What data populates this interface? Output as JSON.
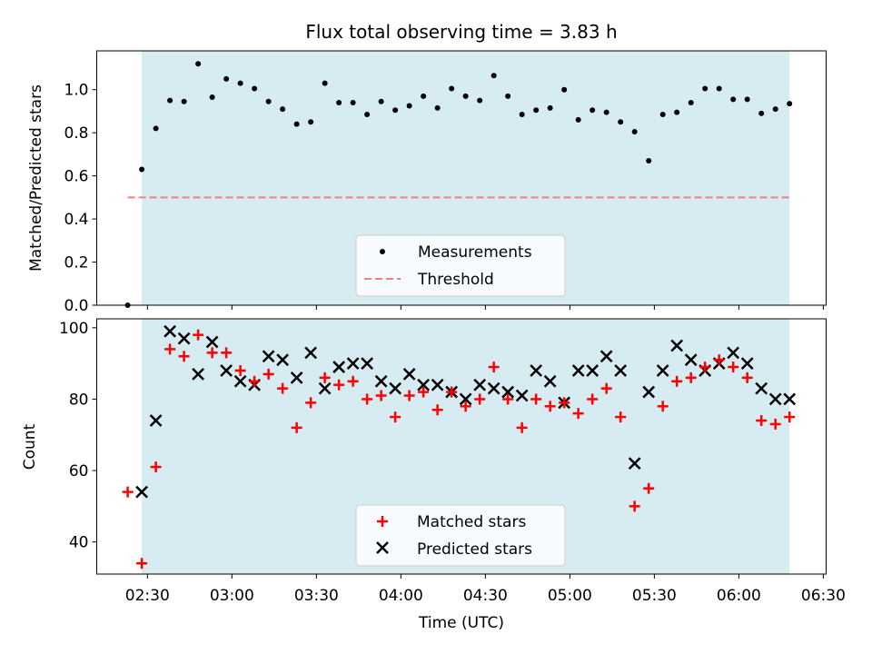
{
  "chart_data": [
    {
      "type": "scatter",
      "title": "Flux total observing time = 3.83 h",
      "xlabel": "",
      "ylabel": "Matched/Predicted stars",
      "xlim": [
        "02:12",
        "06:31"
      ],
      "ylim": [
        0,
        1.18
      ],
      "y_ticks": [
        0.0,
        0.2,
        0.4,
        0.6,
        0.8,
        1.0
      ],
      "y_tick_labels": [
        "0.0",
        "0.2",
        "0.4",
        "0.6",
        "0.8",
        "1.0"
      ],
      "shaded_span": [
        "02:28",
        "06:18"
      ],
      "shade_color": "#add8e6",
      "threshold": {
        "name": "Threshold",
        "y": 0.5,
        "x_range": [
          "02:23",
          "06:18"
        ],
        "color": "#f08080"
      },
      "series": [
        {
          "name": "Measurements",
          "color": "#000000",
          "marker": "dot",
          "x": [
            "02:23",
            "02:28",
            "02:33",
            "02:38",
            "02:43",
            "02:48",
            "02:53",
            "02:58",
            "03:03",
            "03:08",
            "03:13",
            "03:18",
            "03:23",
            "03:28",
            "03:33",
            "03:38",
            "03:43",
            "03:48",
            "03:53",
            "03:58",
            "04:03",
            "04:08",
            "04:13",
            "04:18",
            "04:23",
            "04:28",
            "04:33",
            "04:38",
            "04:43",
            "04:48",
            "04:53",
            "04:58",
            "05:03",
            "05:08",
            "05:13",
            "05:18",
            "05:23",
            "05:28",
            "05:33",
            "05:38",
            "05:43",
            "05:48",
            "05:53",
            "05:58",
            "06:03",
            "06:08",
            "06:13",
            "06:18"
          ],
          "y": [
            0.0,
            0.63,
            0.82,
            0.95,
            0.945,
            1.12,
            0.965,
            1.05,
            1.03,
            1.005,
            0.945,
            0.91,
            0.84,
            0.85,
            1.03,
            0.94,
            0.94,
            0.885,
            0.945,
            0.905,
            0.925,
            0.97,
            0.915,
            1.005,
            0.97,
            0.95,
            1.065,
            0.97,
            0.885,
            0.905,
            0.915,
            1.0,
            0.86,
            0.905,
            0.895,
            0.85,
            0.805,
            0.67,
            0.885,
            0.895,
            0.94,
            1.005,
            1.005,
            0.955,
            0.955,
            0.89,
            0.91,
            0.935
          ]
        }
      ],
      "legend": {
        "placement": "lower center",
        "entries": [
          "Measurements",
          "Threshold"
        ]
      },
      "grid": false
    },
    {
      "type": "scatter",
      "title": "",
      "xlabel": "Time (UTC)",
      "ylabel": "Count",
      "xlim": [
        "02:12",
        "06:31"
      ],
      "ylim": [
        31,
        102.5
      ],
      "y_ticks": [
        40,
        60,
        80,
        100
      ],
      "y_tick_labels": [
        "40",
        "60",
        "80",
        "100"
      ],
      "x_ticks": [
        "02:30",
        "03:00",
        "03:30",
        "04:00",
        "04:30",
        "05:00",
        "05:30",
        "06:00",
        "06:30"
      ],
      "x_tick_labels": [
        "02:30",
        "03:00",
        "03:30",
        "04:00",
        "04:30",
        "05:00",
        "05:30",
        "06:00",
        "06:30"
      ],
      "shaded_span": [
        "02:28",
        "06:18"
      ],
      "shade_color": "#add8e6",
      "series": [
        {
          "name": "Matched stars",
          "color": "#ff0000",
          "marker": "plus",
          "x": [
            "02:23",
            "02:28",
            "02:33",
            "02:38",
            "02:43",
            "02:48",
            "02:53",
            "02:58",
            "03:03",
            "03:08",
            "03:13",
            "03:18",
            "03:23",
            "03:28",
            "03:33",
            "03:38",
            "03:43",
            "03:48",
            "03:53",
            "03:58",
            "04:03",
            "04:08",
            "04:13",
            "04:18",
            "04:23",
            "04:28",
            "04:33",
            "04:38",
            "04:43",
            "04:48",
            "04:53",
            "04:58",
            "05:03",
            "05:08",
            "05:13",
            "05:18",
            "05:23",
            "05:28",
            "05:33",
            "05:38",
            "05:43",
            "05:48",
            "05:53",
            "05:58",
            "06:03",
            "06:08",
            "06:13",
            "06:18"
          ],
          "y": [
            54,
            34,
            61,
            94,
            92,
            98,
            93,
            93,
            88,
            85,
            87,
            83,
            72,
            79,
            86,
            84,
            85,
            80,
            81,
            75,
            81,
            82,
            77,
            82,
            78,
            80,
            89,
            80,
            72,
            80,
            78,
            79,
            76,
            80,
            83,
            75,
            50,
            55,
            78,
            85,
            86,
            89,
            91,
            89,
            86,
            74,
            73,
            75
          ]
        },
        {
          "name": "Predicted stars",
          "color": "#000000",
          "marker": "x",
          "x": [
            "02:28",
            "02:33",
            "02:38",
            "02:43",
            "02:48",
            "02:53",
            "02:58",
            "03:03",
            "03:08",
            "03:13",
            "03:18",
            "03:23",
            "03:28",
            "03:33",
            "03:38",
            "03:43",
            "03:48",
            "03:53",
            "03:58",
            "04:03",
            "04:08",
            "04:13",
            "04:18",
            "04:23",
            "04:28",
            "04:33",
            "04:38",
            "04:43",
            "04:48",
            "04:53",
            "04:58",
            "05:03",
            "05:08",
            "05:13",
            "05:18",
            "05:23",
            "05:28",
            "05:33",
            "05:38",
            "05:43",
            "05:48",
            "05:53",
            "05:58",
            "06:03",
            "06:08",
            "06:13",
            "06:18"
          ],
          "y": [
            54,
            74,
            99,
            97,
            87,
            96,
            88,
            85,
            84,
            92,
            91,
            86,
            93,
            83,
            89,
            90,
            90,
            85,
            83,
            87,
            84,
            84,
            82,
            80,
            84,
            83,
            82,
            81,
            88,
            85,
            79,
            88,
            88,
            92,
            88,
            62,
            82,
            88,
            95,
            91,
            88,
            90,
            93,
            90,
            83,
            80,
            80
          ]
        }
      ],
      "legend": {
        "placement": "lower center",
        "entries": [
          "Matched stars",
          "Predicted stars"
        ]
      },
      "grid": false
    }
  ]
}
